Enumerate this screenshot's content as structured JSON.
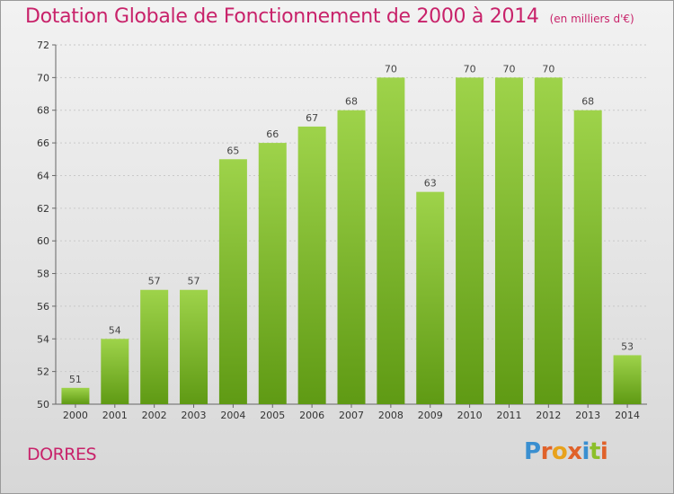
{
  "header": {
    "title": "Dotation Globale de Fonctionnement de 2000 à 2014",
    "unit_note": "(en milliers d'€)"
  },
  "commune": "DORRES",
  "logo": {
    "letters": [
      "P",
      "r",
      "o",
      "x",
      "i",
      "t",
      "i"
    ],
    "colors": [
      "#3a8fd0",
      "#e0622a",
      "#e8a21c",
      "#e0622a",
      "#3a8fd0",
      "#8cbf2a",
      "#e0622a"
    ]
  },
  "chart_data": {
    "type": "bar",
    "categories": [
      "2000",
      "2001",
      "2002",
      "2003",
      "2004",
      "2005",
      "2006",
      "2007",
      "2008",
      "2009",
      "2010",
      "2011",
      "2012",
      "2013",
      "2014"
    ],
    "values": [
      51,
      54,
      57,
      57,
      65,
      66,
      67,
      68,
      70,
      63,
      70,
      70,
      70,
      68,
      53
    ],
    "ylim": [
      50,
      72
    ],
    "yticks": [
      50,
      52,
      54,
      56,
      58,
      60,
      62,
      64,
      66,
      68,
      70,
      72
    ],
    "grid": true,
    "bar_color_top": "#9ed34a",
    "bar_color_bottom": "#5f9a14",
    "title_color": "#c8226a"
  }
}
